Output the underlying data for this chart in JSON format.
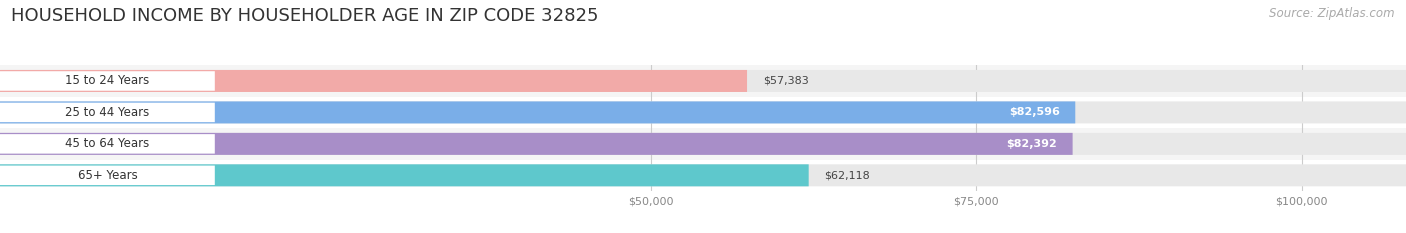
{
  "title": "HOUSEHOLD INCOME BY HOUSEHOLDER AGE IN ZIP CODE 32825",
  "source": "Source: ZipAtlas.com",
  "categories": [
    "15 to 24 Years",
    "25 to 44 Years",
    "45 to 64 Years",
    "65+ Years"
  ],
  "values": [
    57383,
    82596,
    82392,
    62118
  ],
  "bar_colors": [
    "#f2aaa8",
    "#7aaee8",
    "#a88ec8",
    "#5ec8cc"
  ],
  "bar_labels": [
    "$57,383",
    "$82,596",
    "$82,392",
    "$62,118"
  ],
  "label_inside": [
    false,
    true,
    true,
    false
  ],
  "xlim_min": 0,
  "xlim_max": 108000,
  "xticks": [
    50000,
    75000,
    100000
  ],
  "xtick_labels": [
    "$50,000",
    "$75,000",
    "$100,000"
  ],
  "background_color": "#ffffff",
  "row_bg_even": "#f5f5f5",
  "row_bg_odd": "#ffffff",
  "bar_track_color": "#e8e8e8",
  "title_fontsize": 13,
  "source_fontsize": 8.5
}
